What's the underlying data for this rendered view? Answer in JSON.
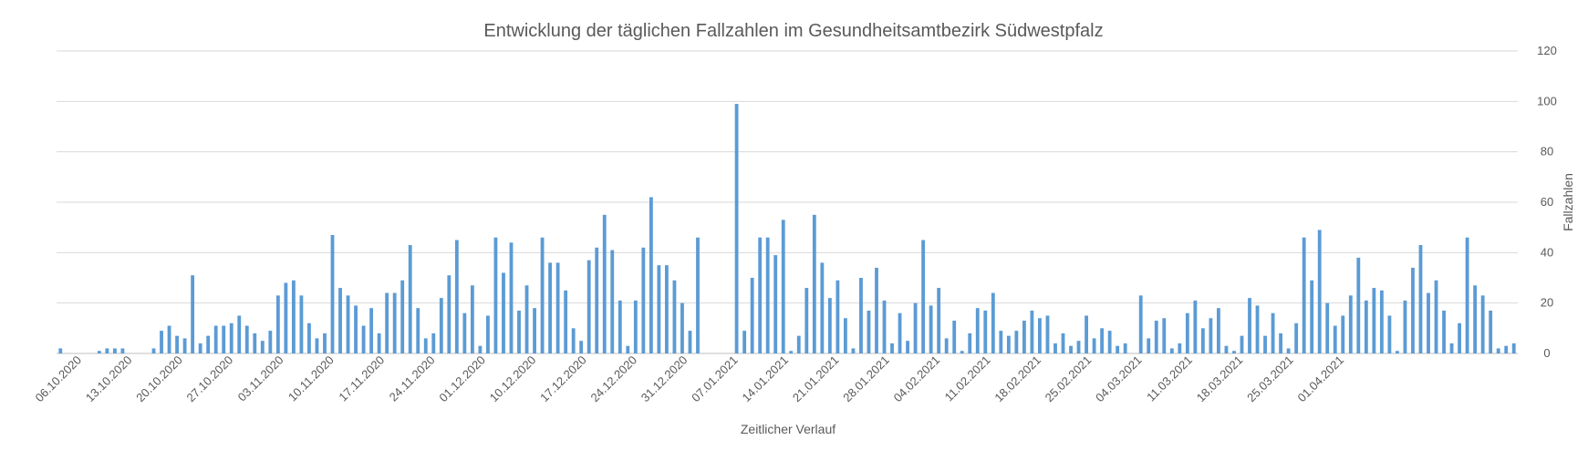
{
  "chart_data": {
    "type": "bar",
    "title": "Entwicklung der täglichen Fallzahlen im Gesundheitsamtbezirk Südwestpfalz",
    "xlabel": "Zeitlicher Verlauf",
    "ylabel": "Fallzahlen",
    "ylim": [
      0,
      120
    ],
    "yticks": [
      0,
      20,
      40,
      60,
      80,
      100,
      120
    ],
    "y_axis_side": "right",
    "grid": true,
    "bar_color": "#5b9bd5",
    "x_start": "2020-10-06",
    "x_end": "2021-04-07",
    "x_tick_labels": [
      "06.10.2020",
      "13.10.2020",
      "20.10.2020",
      "27.10.2020",
      "03.11.2020",
      "10.11.2020",
      "17.11.2020",
      "24.11.2020",
      "01.12.2020",
      "10.12.2020",
      "17.12.2020",
      "24.12.2020",
      "31.12.2020",
      "07.01.2021",
      "14.01.2021",
      "21.01.2021",
      "28.01.2021",
      "04.02.2021",
      "11.02.2021",
      "18.02.2021",
      "25.02.2021",
      "04.03.2021",
      "11.03.2021",
      "18.03.2021",
      "25.03.2021",
      "01.04.2021"
    ],
    "values": [
      2,
      0,
      0,
      0,
      0,
      1,
      2,
      2,
      2,
      0,
      0,
      0,
      2,
      9,
      11,
      7,
      6,
      31,
      4,
      7,
      11,
      11,
      12,
      15,
      11,
      8,
      5,
      9,
      23,
      28,
      29,
      23,
      12,
      6,
      8,
      47,
      26,
      23,
      19,
      11,
      18,
      8,
      24,
      24,
      29,
      43,
      18,
      6,
      8,
      22,
      31,
      45,
      16,
      27,
      3,
      15,
      46,
      32,
      44,
      17,
      27,
      18,
      46,
      36,
      36,
      25,
      10,
      5,
      37,
      42,
      55,
      41,
      21,
      3,
      21,
      42,
      62,
      35,
      35,
      29,
      20,
      9,
      46,
      0,
      0,
      0,
      0,
      99,
      9,
      30,
      46,
      46,
      39,
      53,
      1,
      7,
      26,
      55,
      36,
      22,
      29,
      14,
      2,
      30,
      17,
      34,
      21,
      4,
      16,
      5,
      20,
      45,
      19,
      26,
      6,
      13,
      1,
      8,
      18,
      17,
      24,
      9,
      7,
      9,
      13,
      17,
      14,
      15,
      4,
      8,
      3,
      5,
      15,
      6,
      10,
      9,
      3,
      4,
      0,
      23,
      6,
      13,
      14,
      2,
      4,
      16,
      21,
      10,
      14,
      18,
      3,
      1,
      7,
      22,
      19,
      7,
      16,
      8,
      2,
      12,
      46,
      29,
      49,
      20,
      11,
      15,
      23,
      38,
      21,
      26,
      25,
      15,
      1,
      21,
      34,
      43,
      24,
      29,
      17,
      4,
      12,
      46,
      27,
      23,
      17,
      2,
      3,
      4
    ]
  }
}
